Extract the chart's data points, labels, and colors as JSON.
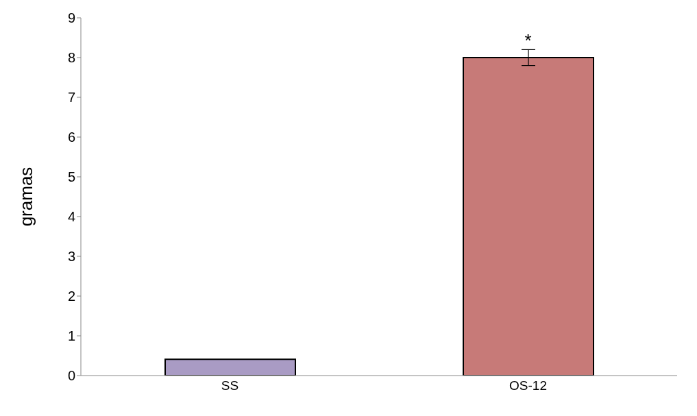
{
  "chart_data": {
    "type": "bar",
    "ylabel": "gramas",
    "categories": [
      "SS",
      "OS-12"
    ],
    "values": [
      0.41,
      8.0
    ],
    "colors": [
      "#a99bc4",
      "#c77a78"
    ],
    "errors": [
      null,
      0.2
    ],
    "ylim": [
      0,
      9
    ],
    "yticks": [
      0,
      1,
      2,
      3,
      4,
      5,
      6,
      7,
      8,
      9
    ],
    "grid": false,
    "annotations": [
      {
        "text": "*",
        "x": "OS-12",
        "y": 8.2
      }
    ]
  }
}
